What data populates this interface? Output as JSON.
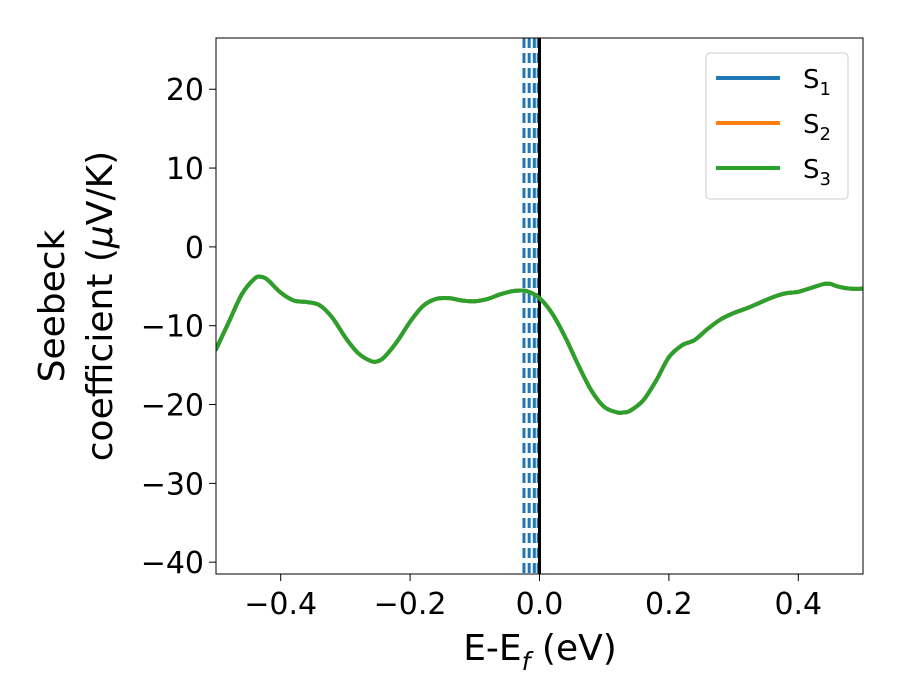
{
  "chart_data": {
    "type": "line",
    "xlabel_main": "E-E",
    "xlabel_sub": "f",
    "xlabel_unit": " (eV)",
    "ylabel_line1": "Seebeck",
    "ylabel_line2": "coefficient  (",
    "ylabel_mu": "μ",
    "ylabel_unit": "V/K)",
    "xlim": [
      -0.5,
      0.5
    ],
    "ylim": [
      -41.5,
      26.5
    ],
    "x_ticks": [
      -0.4,
      -0.2,
      0.0,
      0.2,
      0.4
    ],
    "x_tick_labels": [
      "−0.4",
      "−0.2",
      "0.0",
      "0.2",
      "0.4"
    ],
    "y_ticks": [
      -40,
      -30,
      -20,
      -10,
      0,
      10,
      20
    ],
    "y_tick_labels": [
      "−40",
      "−30",
      "−20",
      "−10",
      "0",
      "10",
      "20"
    ],
    "grid": false,
    "legend_position": "top-right",
    "series": [
      {
        "name": "S",
        "sub": "1",
        "color": "#1f77b4"
      },
      {
        "name": "S",
        "sub": "2",
        "color": "#ff7f0e"
      },
      {
        "name": "S",
        "sub": "3",
        "color": "#2ca02c"
      }
    ],
    "x": [
      -0.5,
      -0.48,
      -0.46,
      -0.44,
      -0.43,
      -0.42,
      -0.4,
      -0.38,
      -0.36,
      -0.34,
      -0.32,
      -0.3,
      -0.28,
      -0.26,
      -0.25,
      -0.24,
      -0.22,
      -0.2,
      -0.18,
      -0.16,
      -0.14,
      -0.12,
      -0.1,
      -0.08,
      -0.06,
      -0.04,
      -0.02,
      0.0,
      0.02,
      0.04,
      0.06,
      0.08,
      0.1,
      0.12,
      0.13,
      0.14,
      0.16,
      0.18,
      0.2,
      0.22,
      0.24,
      0.26,
      0.28,
      0.3,
      0.32,
      0.34,
      0.36,
      0.38,
      0.4,
      0.42,
      0.44,
      0.45,
      0.46,
      0.48,
      0.5
    ],
    "y": [
      -13.0,
      -9.5,
      -6.0,
      -4.0,
      -3.8,
      -4.2,
      -5.8,
      -6.8,
      -7.0,
      -7.4,
      -9.0,
      -11.5,
      -13.5,
      -14.5,
      -14.5,
      -14.0,
      -12.0,
      -9.5,
      -7.5,
      -6.6,
      -6.5,
      -6.8,
      -6.9,
      -6.6,
      -6.0,
      -5.6,
      -5.6,
      -6.5,
      -8.5,
      -11.5,
      -15.0,
      -18.2,
      -20.3,
      -21.0,
      -21.0,
      -20.8,
      -19.5,
      -17.0,
      -14.0,
      -12.5,
      -11.8,
      -10.4,
      -9.2,
      -8.4,
      -7.8,
      -7.1,
      -6.4,
      -5.9,
      -5.7,
      -5.2,
      -4.7,
      -4.7,
      -5.0,
      -5.3,
      -5.3
    ],
    "fermi_line_x": 0.0,
    "dashed_vlines": {
      "color": "#1f77b4",
      "x": [
        -0.024,
        -0.016,
        -0.008,
        -0.002
      ]
    }
  }
}
